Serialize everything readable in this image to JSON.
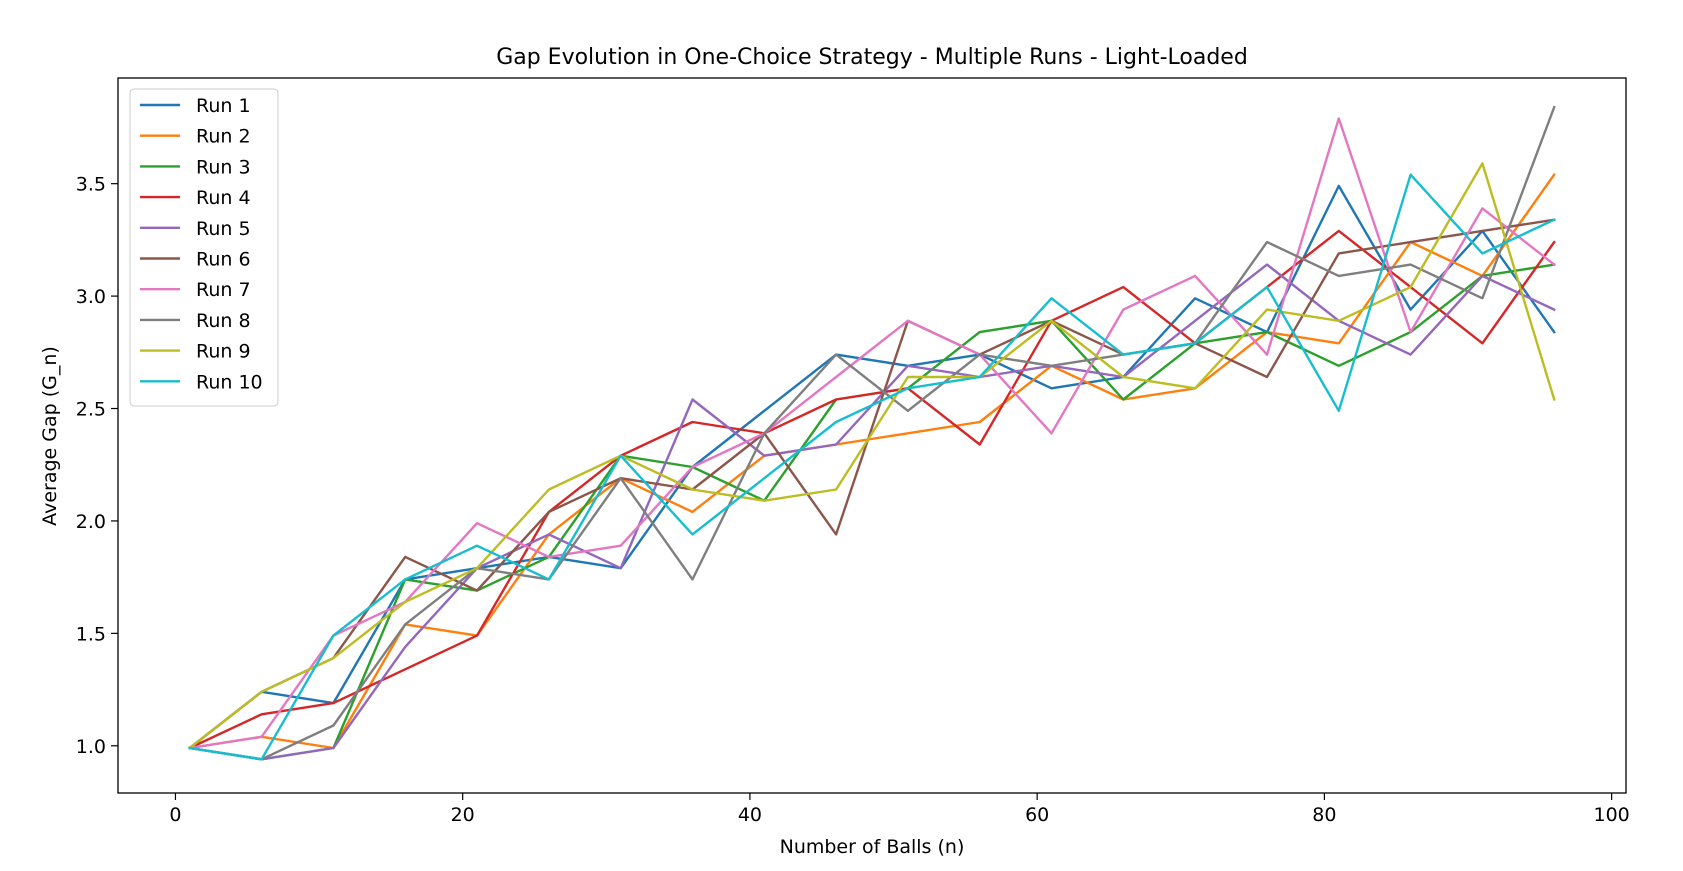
{
  "chart_data": {
    "type": "line",
    "title": "Gap Evolution in One-Choice Strategy - Multiple Runs - Light-Loaded",
    "xlabel": "Number of Balls (n)",
    "ylabel": "Average Gap (G_n)",
    "xlim": [
      -4,
      101
    ],
    "ylim": [
      0.79,
      3.97
    ],
    "xticks": [
      0,
      20,
      40,
      60,
      80,
      100
    ],
    "yticks": [
      1.0,
      1.5,
      2.0,
      2.5,
      3.0,
      3.5
    ],
    "xtick_labels": [
      "0",
      "20",
      "40",
      "60",
      "80",
      "100"
    ],
    "ytick_labels": [
      "1.0",
      "1.5",
      "2.0",
      "2.5",
      "3.0",
      "3.5"
    ],
    "grid": false,
    "legend_position": "top-left",
    "x": [
      1,
      6,
      11,
      16,
      21,
      26,
      31,
      36,
      41,
      46,
      51,
      56,
      61,
      66,
      71,
      76,
      81,
      86,
      91,
      96
    ],
    "series": [
      {
        "name": "Run 1",
        "color": "#1f77b4",
        "values": [
          0.99,
          1.24,
          1.19,
          1.74,
          1.79,
          1.84,
          1.79,
          2.24,
          2.49,
          2.74,
          2.69,
          2.74,
          2.59,
          2.64,
          2.99,
          2.84,
          3.49,
          2.94,
          3.29,
          2.84
        ]
      },
      {
        "name": "Run 2",
        "color": "#ff7f0e",
        "values": [
          0.99,
          1.04,
          0.99,
          1.54,
          1.49,
          1.94,
          2.19,
          2.04,
          2.29,
          2.34,
          2.39,
          2.44,
          2.69,
          2.54,
          2.59,
          2.84,
          2.79,
          3.24,
          3.09,
          3.54
        ]
      },
      {
        "name": "Run 3",
        "color": "#2ca02c",
        "values": [
          0.99,
          0.94,
          0.99,
          1.74,
          1.69,
          1.84,
          2.29,
          2.24,
          2.09,
          2.54,
          2.59,
          2.84,
          2.89,
          2.54,
          2.79,
          2.84,
          2.69,
          2.84,
          3.09,
          3.14
        ]
      },
      {
        "name": "Run 4",
        "color": "#d62728",
        "values": [
          0.99,
          1.14,
          1.19,
          1.34,
          1.49,
          2.04,
          2.29,
          2.44,
          2.39,
          2.54,
          2.59,
          2.34,
          2.89,
          3.04,
          2.79,
          3.04,
          3.29,
          3.04,
          2.79,
          3.24
        ]
      },
      {
        "name": "Run 5",
        "color": "#9467bd",
        "values": [
          0.99,
          0.94,
          0.99,
          1.44,
          1.79,
          1.94,
          1.79,
          2.54,
          2.29,
          2.34,
          2.69,
          2.64,
          2.69,
          2.64,
          2.89,
          3.14,
          2.89,
          2.74,
          3.09,
          2.94
        ]
      },
      {
        "name": "Run 6",
        "color": "#8c564b",
        "values": [
          0.99,
          1.24,
          1.39,
          1.84,
          1.69,
          2.04,
          2.19,
          2.14,
          2.39,
          1.94,
          2.89,
          2.74,
          2.89,
          2.74,
          2.79,
          2.64,
          3.19,
          3.24,
          3.29,
          3.34
        ]
      },
      {
        "name": "Run 7",
        "color": "#e377c2",
        "values": [
          0.99,
          1.04,
          1.49,
          1.64,
          1.99,
          1.84,
          1.89,
          2.24,
          2.39,
          2.64,
          2.89,
          2.74,
          2.39,
          2.94,
          3.09,
          2.74,
          3.79,
          2.84,
          3.39,
          3.14
        ]
      },
      {
        "name": "Run 8",
        "color": "#7f7f7f",
        "values": [
          0.99,
          0.94,
          1.09,
          1.54,
          1.79,
          1.74,
          2.19,
          1.74,
          2.39,
          2.74,
          2.49,
          2.74,
          2.69,
          2.74,
          2.79,
          3.24,
          3.09,
          3.14,
          2.99,
          3.84
        ]
      },
      {
        "name": "Run 9",
        "color": "#bcbd22",
        "values": [
          0.99,
          1.24,
          1.39,
          1.64,
          1.79,
          2.14,
          2.29,
          2.14,
          2.09,
          2.14,
          2.64,
          2.64,
          2.89,
          2.64,
          2.59,
          2.94,
          2.89,
          3.04,
          3.59,
          2.54
        ]
      },
      {
        "name": "Run 10",
        "color": "#17becf",
        "values": [
          0.99,
          0.94,
          1.49,
          1.74,
          1.89,
          1.74,
          2.29,
          1.94,
          2.19,
          2.44,
          2.59,
          2.64,
          2.99,
          2.74,
          2.79,
          3.04,
          2.49,
          3.54,
          3.19,
          3.34
        ]
      }
    ]
  }
}
